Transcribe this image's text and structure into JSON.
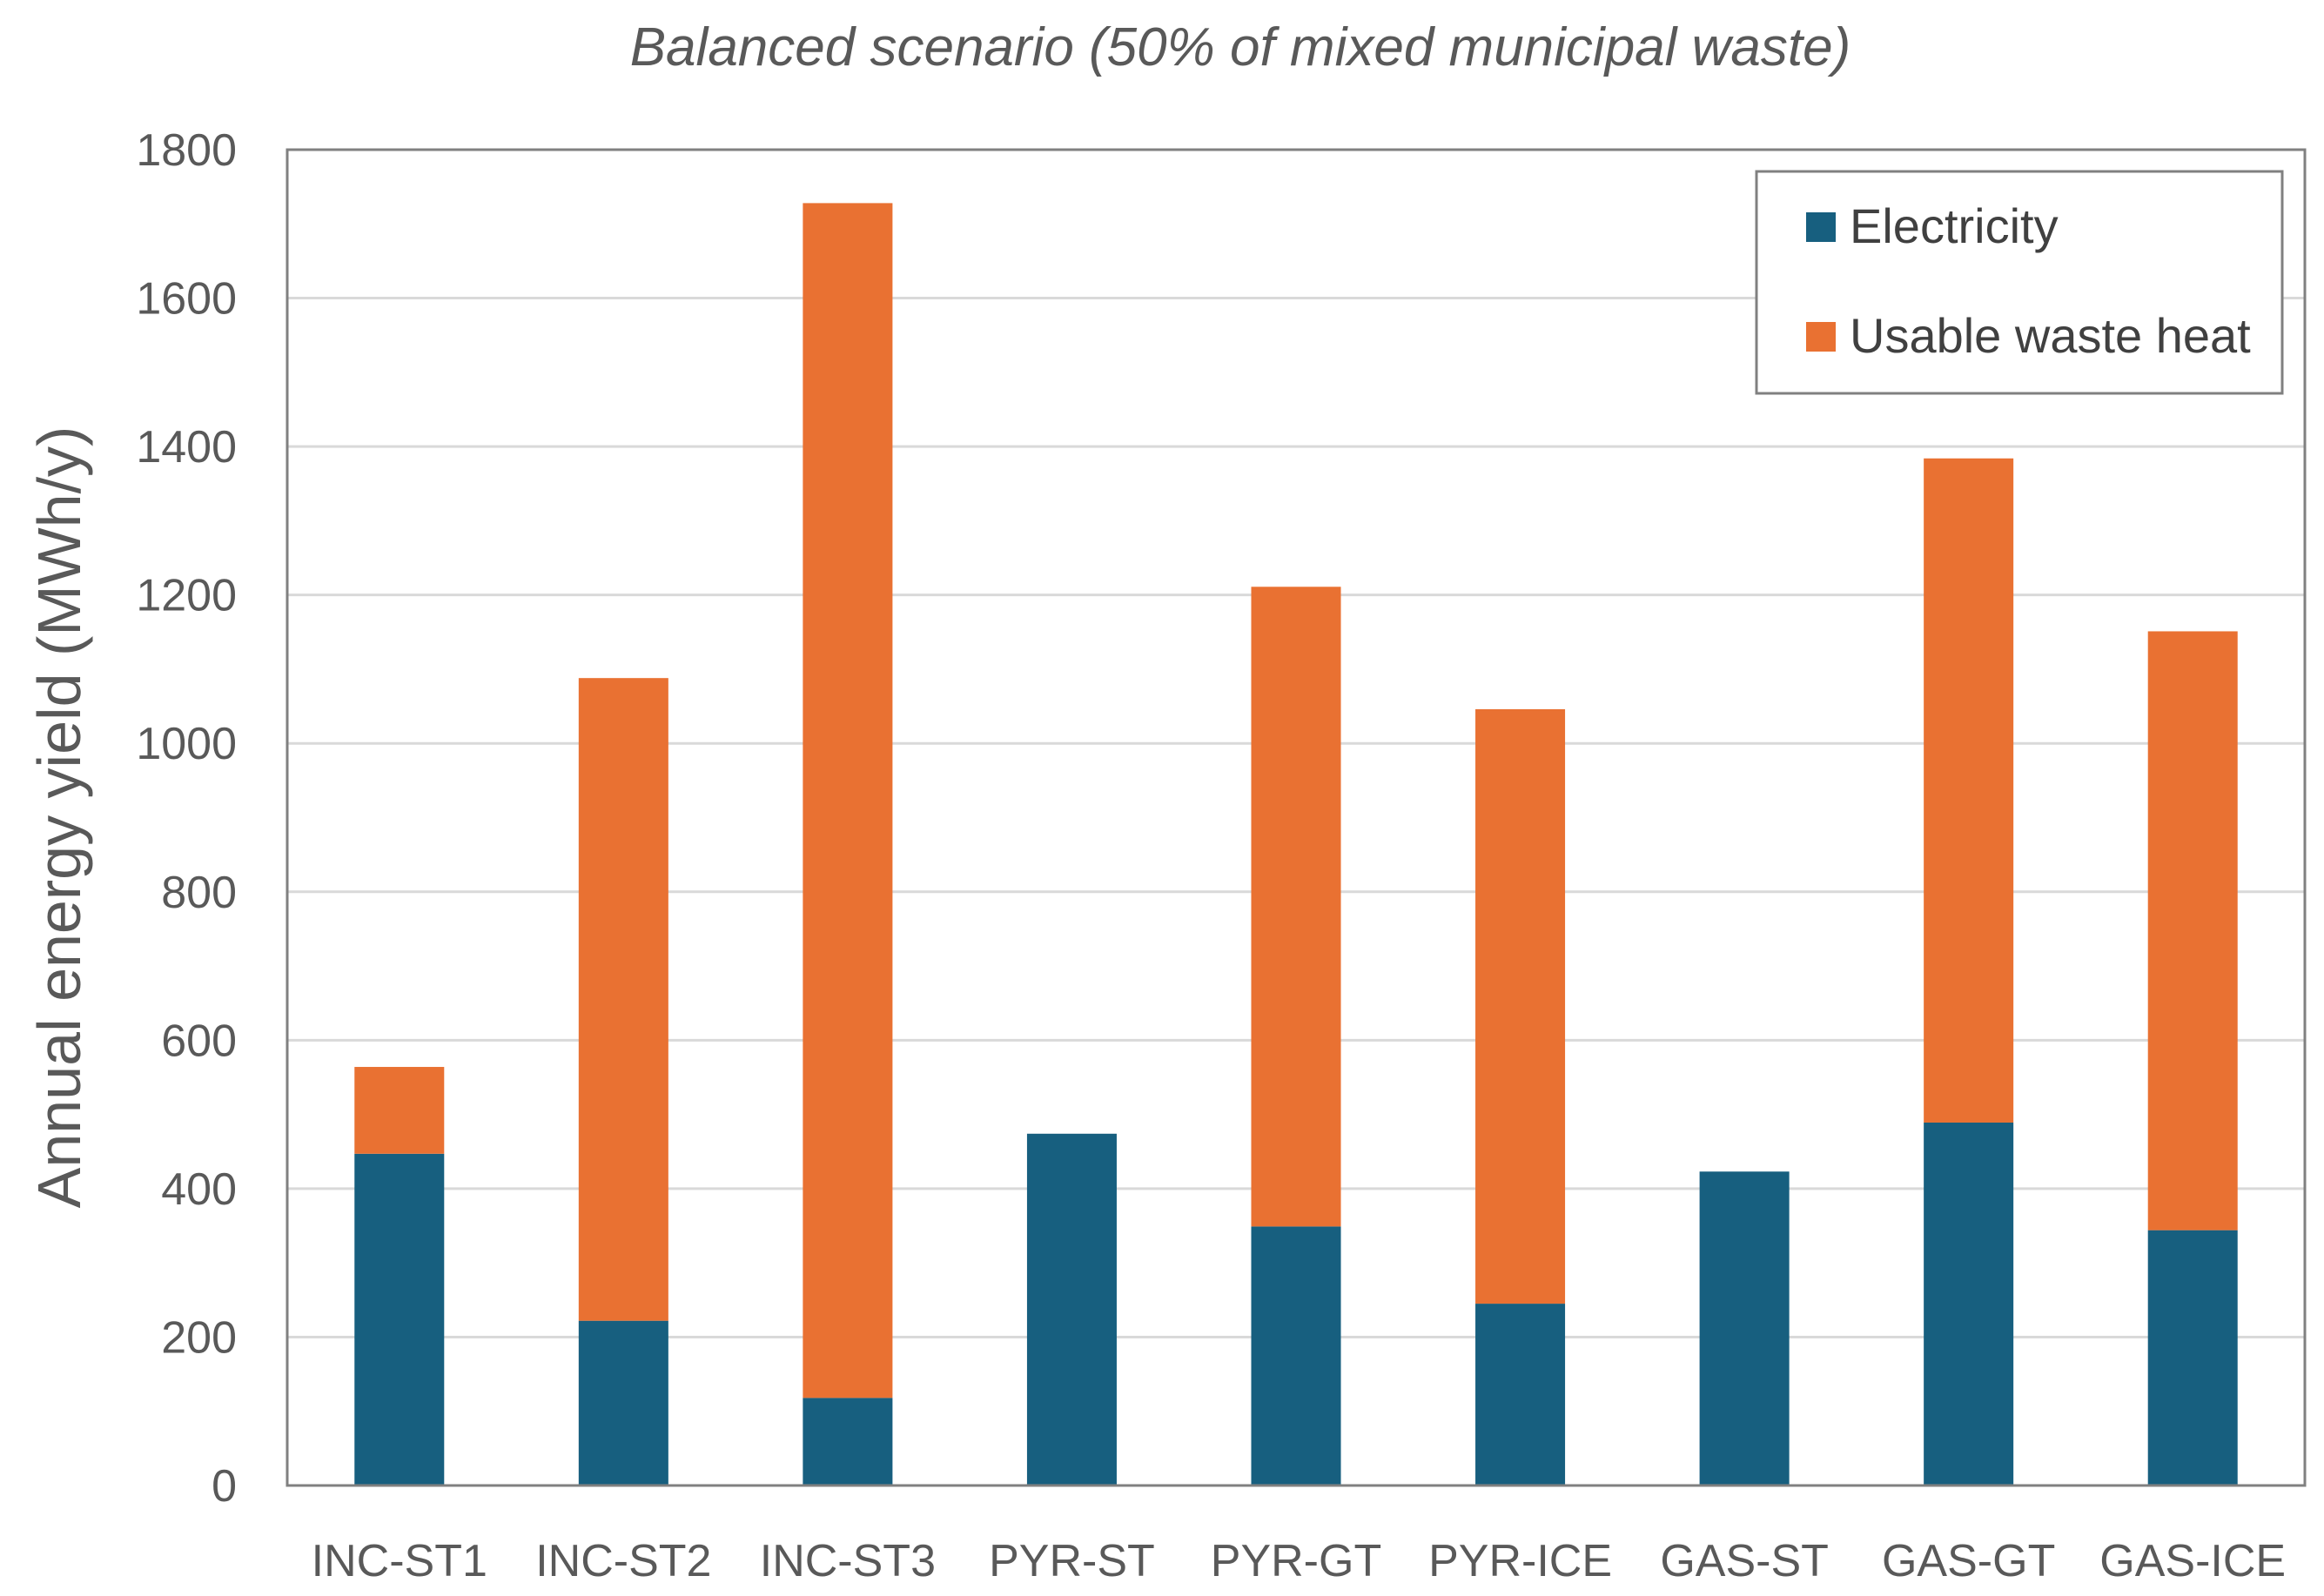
{
  "chart_data": {
    "type": "bar",
    "stacked": true,
    "title": "Balanced scenario (50% of mixed municipal waste)",
    "xlabel": "",
    "ylabel": "Annual energy yield (MWh/y)",
    "ylim": [
      0,
      1800
    ],
    "yticks": [
      0,
      200,
      400,
      600,
      800,
      1000,
      1200,
      1400,
      1600,
      1800
    ],
    "grid": true,
    "legend_position": "top-right",
    "categories": [
      "INC-ST1",
      "INC-ST2",
      "INC-ST3",
      "PYR-ST",
      "PYR-GT",
      "PYR-ICE",
      "GAS-ST",
      "GAS-GT",
      "GAS-ICE"
    ],
    "series": [
      {
        "name": "Electricity",
        "color": "#175f7f",
        "values": [
          447,
          222,
          118,
          474,
          349,
          245,
          423,
          489,
          344
        ]
      },
      {
        "name": "Usable waste heat",
        "color": "#e97132",
        "values": [
          117,
          866,
          1610,
          0,
          862,
          801,
          0,
          895,
          807
        ]
      }
    ]
  }
}
